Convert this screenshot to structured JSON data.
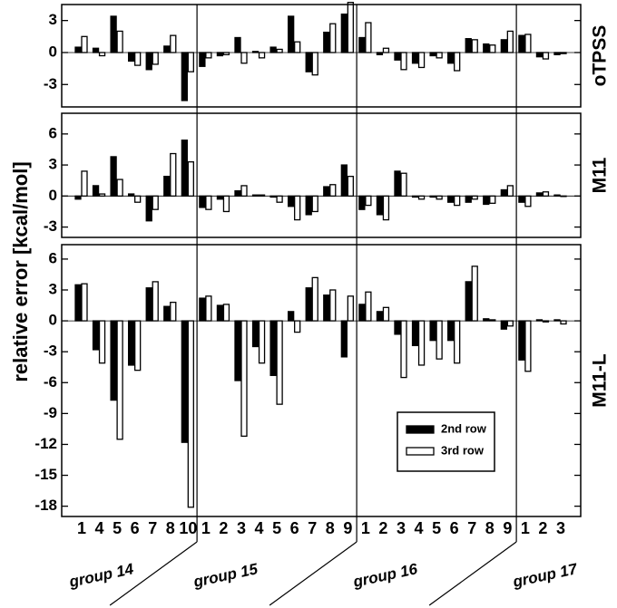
{
  "chart_data": [
    {
      "type": "bar",
      "title": "oTPSS",
      "ylim": [
        -5.1,
        4.5
      ],
      "yticks": [
        -3,
        0,
        3
      ],
      "series": [
        {
          "color": "#000000",
          "values": [
            0.5,
            0.4,
            3.4,
            -0.8,
            -1.6,
            0.6,
            -4.5,
            -1.3,
            -0.3,
            1.4,
            0.1,
            0.5,
            3.4,
            -1.8,
            1.9,
            3.6,
            1.4,
            -0.2,
            -0.7,
            -1.0,
            -0.3,
            -1.0,
            1.3,
            0.8,
            1.2,
            1.6,
            -0.4,
            -0.2
          ]
        },
        {
          "color": "#ffffff",
          "values": [
            1.5,
            -0.3,
            2.0,
            -1.2,
            -1.1,
            1.6,
            -1.8,
            -0.5,
            -0.2,
            -1.0,
            -0.5,
            0.3,
            1.0,
            -2.1,
            2.7,
            4.7,
            2.8,
            0.4,
            -1.6,
            -1.4,
            -0.5,
            -1.7,
            1.2,
            0.7,
            2.0,
            1.7,
            -0.6,
            -0.1
          ]
        }
      ]
    },
    {
      "type": "bar",
      "title": "M11",
      "ylabel": "relative error [kcal/mol]",
      "ylim": [
        -4,
        8
      ],
      "yticks": [
        -3,
        0,
        3,
        6
      ],
      "series": [
        {
          "color": "#000000",
          "values": [
            -0.3,
            1.0,
            3.8,
            0.2,
            -2.4,
            1.9,
            5.4,
            -1.1,
            -0.3,
            0.5,
            0.1,
            -0.1,
            -1.0,
            -1.8,
            0.9,
            3.0,
            -1.3,
            -1.8,
            2.4,
            -0.1,
            -0.1,
            -0.6,
            -0.6,
            -0.8,
            0.6,
            -0.6,
            0.3,
            0.1
          ]
        },
        {
          "color": "#ffffff",
          "values": [
            2.4,
            0.2,
            1.6,
            -0.6,
            -1.3,
            4.1,
            3.3,
            -1.3,
            -1.5,
            1.0,
            0.1,
            -0.6,
            -2.3,
            -1.5,
            1.1,
            1.9,
            -0.9,
            -2.3,
            2.2,
            -0.3,
            -0.3,
            -0.9,
            -0.3,
            -0.7,
            1.0,
            -1.0,
            0.4,
            0.0
          ]
        }
      ]
    },
    {
      "type": "bar",
      "title": "M11-L",
      "ylim": [
        -19,
        7.4
      ],
      "yticks": [
        -18,
        -15,
        -12,
        -9,
        -6,
        -3,
        0,
        3,
        6
      ],
      "categories": [
        "1",
        "4",
        "5",
        "6",
        "7",
        "8",
        "10",
        "1",
        "2",
        "3",
        "4",
        "5",
        "6",
        "7",
        "8",
        "9",
        "1",
        "2",
        "3",
        "4",
        "5",
        "6",
        "7",
        "8",
        "9",
        "1",
        "2",
        "3"
      ],
      "groups": [
        "group 14",
        "group 15",
        "group 16",
        "group 17"
      ],
      "series": [
        {
          "name": "2nd row",
          "color": "#000000",
          "values": [
            3.5,
            -2.8,
            -7.7,
            -4.3,
            3.2,
            1.4,
            -11.8,
            2.2,
            1.5,
            -5.8,
            -2.5,
            -5.3,
            0.9,
            3.2,
            2.5,
            -3.5,
            1.6,
            0.9,
            -1.3,
            -2.4,
            -1.9,
            -1.9,
            3.8,
            0.2,
            -0.8,
            -3.8,
            0.1,
            0.1
          ]
        },
        {
          "name": "3rd row",
          "color": "#ffffff",
          "values": [
            3.6,
            -4.1,
            -11.5,
            -4.8,
            3.8,
            1.8,
            -18.1,
            2.4,
            1.6,
            -11.2,
            -4.1,
            -8.1,
            -1.1,
            4.2,
            3.0,
            2.4,
            2.8,
            1.3,
            -5.5,
            -4.3,
            -3.7,
            -4.1,
            5.3,
            0.1,
            -0.5,
            -4.9,
            -0.1,
            -0.3
          ]
        }
      ]
    }
  ]
}
